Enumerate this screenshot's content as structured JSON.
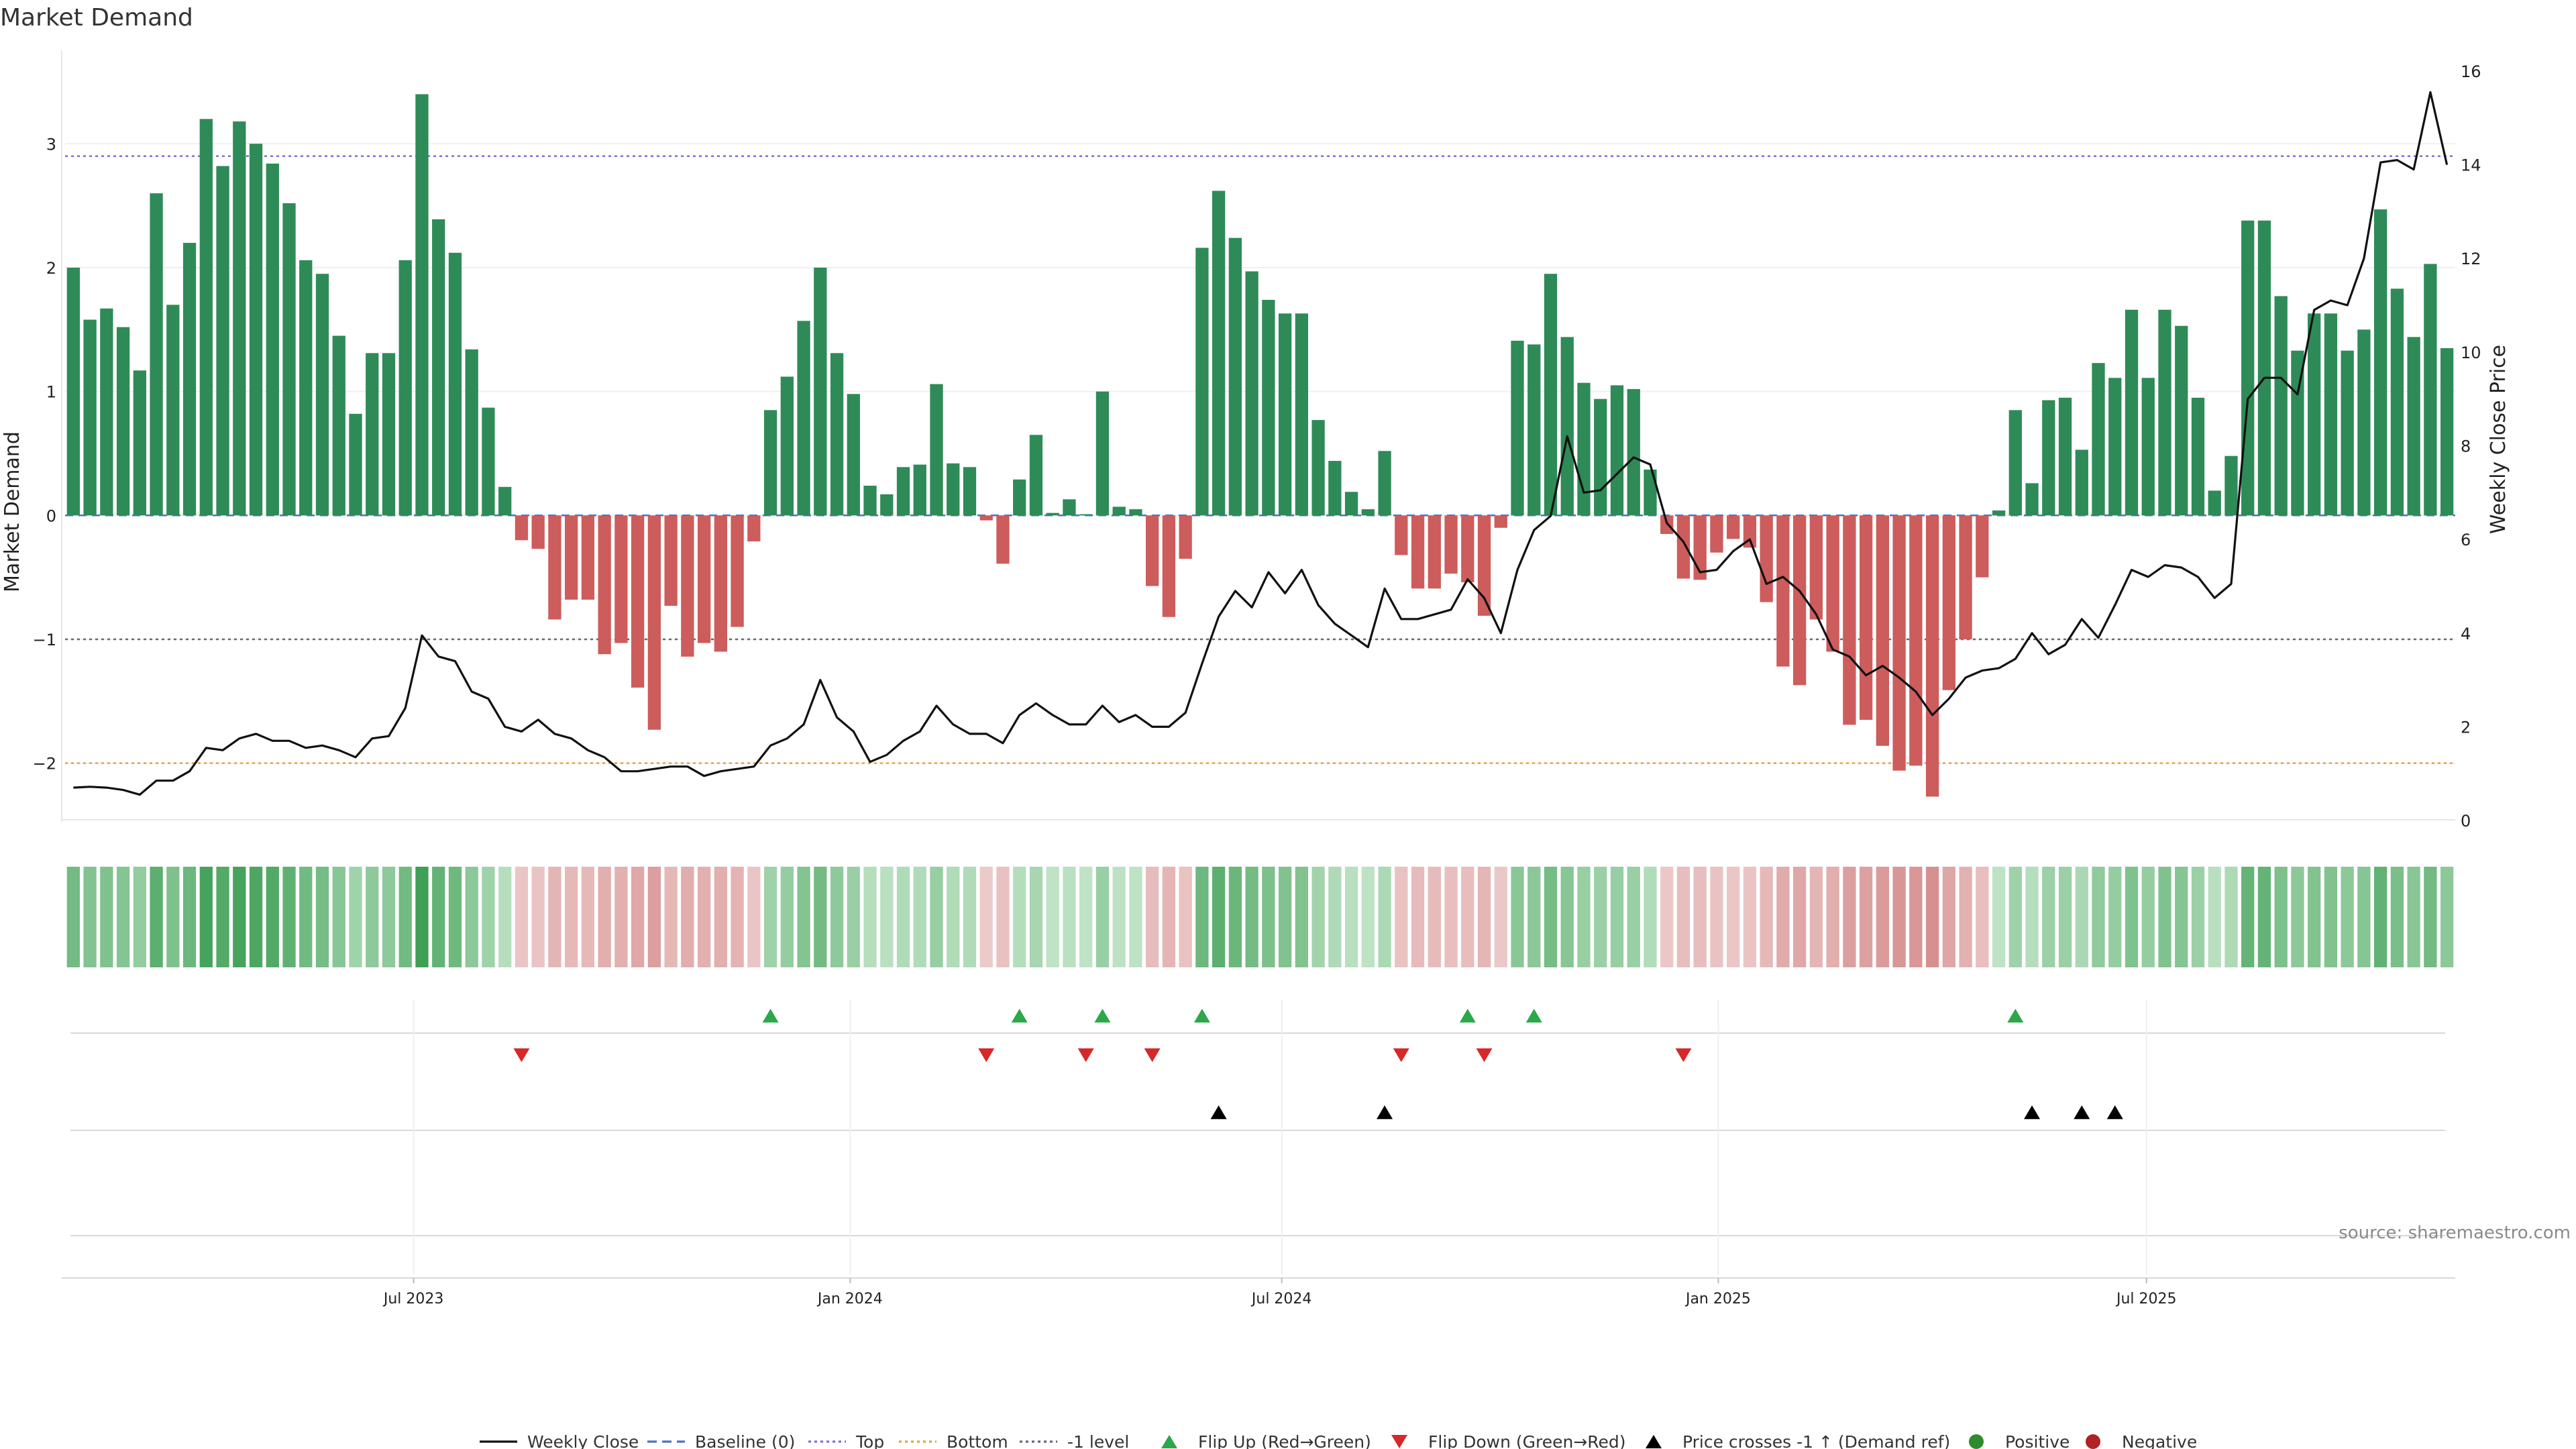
{
  "chart_data": {
    "type": "bar",
    "title": "Market Demand",
    "ylabel": "Market Demand",
    "y2label": "Weekly Close Price",
    "ylim": [
      -2.5,
      3.7
    ],
    "y2lim": [
      -0.1,
      16.3
    ],
    "yticks": [
      -2,
      -1,
      0,
      1,
      2,
      3
    ],
    "y2ticks": [
      0,
      2,
      4,
      6,
      8,
      10,
      12,
      14,
      16
    ],
    "reference_lines": {
      "baseline": 0,
      "top": 2.9,
      "bottom": -2.0,
      "minus_one": -1
    },
    "x_ticks": [
      {
        "week": 20.5,
        "label": "Jul 2023"
      },
      {
        "week": 46.8,
        "label": "Jan 2024"
      },
      {
        "week": 72.8,
        "label": "Jul 2024"
      },
      {
        "week": 99.1,
        "label": "Jan 2025"
      },
      {
        "week": 124.9,
        "label": "Jul 2025"
      }
    ],
    "demand": [
      2.0,
      1.58,
      1.67,
      1.52,
      1.17,
      2.6,
      1.7,
      2.2,
      3.2,
      2.82,
      3.18,
      3.0,
      2.84,
      2.52,
      2.06,
      1.95,
      1.45,
      0.82,
      1.31,
      1.31,
      2.06,
      3.4,
      2.39,
      2.12,
      1.34,
      0.87,
      0.23,
      -0.2,
      -0.27,
      -0.84,
      -0.68,
      -0.68,
      -1.12,
      -1.03,
      -1.39,
      -1.73,
      -0.73,
      -1.14,
      -1.03,
      -1.1,
      -0.9,
      -0.21,
      0.85,
      1.12,
      1.57,
      2.0,
      1.31,
      0.98,
      0.24,
      0.17,
      0.39,
      0.41,
      1.06,
      0.42,
      0.39,
      -0.04,
      -0.39,
      0.29,
      0.65,
      0.02,
      0.13,
      0.01,
      1.0,
      0.07,
      0.05,
      -0.57,
      -0.82,
      -0.35,
      2.16,
      2.62,
      2.24,
      1.97,
      1.74,
      1.63,
      1.63,
      0.77,
      0.44,
      0.19,
      0.05,
      0.52,
      -0.32,
      -0.59,
      -0.59,
      -0.47,
      -0.54,
      -0.81,
      -0.1,
      1.41,
      1.38,
      1.95,
      1.44,
      1.07,
      0.94,
      1.05,
      1.02,
      0.37,
      -0.15,
      -0.51,
      -0.52,
      -0.3,
      -0.19,
      -0.26,
      -0.7,
      -1.22,
      -1.37,
      -0.84,
      -1.1,
      -1.69,
      -1.65,
      -1.86,
      -2.06,
      -2.02,
      -2.27,
      -1.41,
      -1.0,
      -0.5,
      0.04,
      0.85,
      0.26,
      0.93,
      0.95,
      0.53,
      1.23,
      1.11,
      1.66,
      1.11,
      1.66,
      1.53,
      0.95,
      0.2,
      0.48,
      2.38,
      2.38,
      1.77,
      1.33,
      1.63,
      1.63,
      1.33,
      1.5,
      2.47,
      1.83,
      1.44,
      2.03,
      1.35
    ],
    "weekly_close": [
      0.7,
      0.72,
      0.7,
      0.65,
      0.55,
      0.85,
      0.85,
      1.05,
      1.55,
      1.5,
      1.75,
      1.85,
      1.7,
      1.7,
      1.55,
      1.6,
      1.5,
      1.35,
      1.75,
      1.8,
      2.4,
      3.95,
      3.5,
      3.4,
      2.75,
      2.6,
      2.0,
      1.9,
      2.15,
      1.85,
      1.75,
      1.5,
      1.35,
      1.05,
      1.05,
      1.1,
      1.15,
      1.15,
      0.95,
      1.05,
      1.1,
      1.15,
      1.6,
      1.75,
      2.05,
      3.0,
      2.2,
      1.9,
      1.25,
      1.4,
      1.7,
      1.9,
      2.45,
      2.05,
      1.85,
      1.85,
      1.65,
      2.25,
      2.5,
      2.25,
      2.05,
      2.05,
      2.45,
      2.1,
      2.25,
      2.0,
      2.0,
      2.3,
      3.35,
      4.35,
      4.9,
      4.55,
      5.3,
      4.85,
      5.35,
      4.6,
      4.2,
      3.95,
      3.7,
      4.95,
      4.3,
      4.3,
      4.4,
      4.5,
      5.15,
      4.75,
      4.0,
      5.35,
      6.2,
      6.5,
      8.2,
      7.0,
      7.05,
      7.4,
      7.75,
      7.6,
      6.35,
      5.95,
      5.3,
      5.35,
      5.75,
      6.0,
      5.05,
      5.2,
      4.9,
      4.4,
      3.65,
      3.5,
      3.1,
      3.3,
      3.05,
      2.75,
      2.25,
      2.6,
      3.05,
      3.2,
      3.25,
      3.45,
      4.0,
      3.55,
      3.75,
      4.3,
      3.9,
      4.6,
      5.35,
      5.2,
      5.45,
      5.4,
      5.2,
      4.75,
      5.05,
      9.0,
      9.45,
      9.45,
      9.1,
      10.9,
      11.1,
      11.0,
      12.0,
      14.05,
      14.1,
      13.9,
      15.55,
      14.0
    ],
    "heat_strip_label": "",
    "flip_up_weeks": [
      42,
      57,
      62,
      68,
      84,
      88,
      117
    ],
    "flip_down_weeks": [
      27,
      55,
      61,
      65,
      80,
      85,
      97
    ],
    "price_cross_weeks": [
      69,
      79,
      118,
      121,
      123
    ],
    "legend": [
      "Weekly Close",
      "Baseline (0)",
      "Top",
      "Bottom",
      "-1 level",
      "Flip Up (Red→Green)",
      "Flip Down (Green→Red)",
      "Price crosses -1 ↑ (Demand ref)",
      "Positive",
      "Negative"
    ],
    "colors": {
      "positive_bar": "#2e8b57",
      "negative_bar": "#cd5c5c",
      "line": "#111111",
      "baseline": "#4a72c4",
      "top": "#7b6fd6",
      "bottom": "#e8a040",
      "minus_one": "#666677",
      "flip_up": "#2aa84a",
      "flip_down": "#d62828",
      "cross": "#000000",
      "positive_dot": "#2e8b2e",
      "negative_dot": "#b22222"
    },
    "source": "source: sharemaestro.com"
  }
}
